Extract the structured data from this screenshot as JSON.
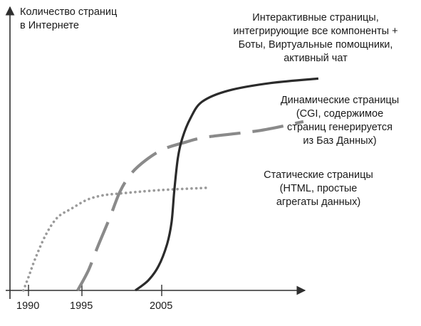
{
  "chart_data": {
    "type": "line",
    "ylabel_lines": [
      "Количество страниц",
      "в Интернете"
    ],
    "xlabel": "",
    "x_ticks": [
      1990,
      1995,
      2005
    ],
    "xlim": [
      1989,
      2017
    ],
    "ylim": [
      0,
      100
    ],
    "grid": false,
    "series": [
      {
        "name_lines": [
          "Статические страницы",
          "(HTML, простые",
          "агрегаты данных)"
        ],
        "style": "dotted",
        "color": "#9a9a9a",
        "points": [
          [
            1989.6,
            0
          ],
          [
            1990.0,
            6
          ],
          [
            1990.6,
            14
          ],
          [
            1991.6,
            25
          ],
          [
            1992.7,
            33
          ],
          [
            1994.0,
            37
          ],
          [
            1995.6,
            41
          ],
          [
            1997.5,
            43
          ],
          [
            2000.0,
            44
          ],
          [
            2005.0,
            45.5
          ],
          [
            2010.0,
            46.5
          ]
        ]
      },
      {
        "name_lines": [
          "Динамические страницы",
          "(CGI, содержимое",
          "страниц генерируется",
          "из Баз Данных)"
        ],
        "style": "dashed",
        "color": "#8a8a8a",
        "points": [
          [
            1994.6,
            0
          ],
          [
            1995.8,
            9
          ],
          [
            1997.0,
            20
          ],
          [
            1998.5,
            33
          ],
          [
            1999.8,
            45
          ],
          [
            2001.2,
            53
          ],
          [
            2003.0,
            59
          ],
          [
            2005.2,
            64
          ],
          [
            2007.5,
            67
          ],
          [
            2010.0,
            69.5
          ],
          [
            2012.5,
            72.5
          ],
          [
            2014.5,
            76.5
          ]
        ]
      },
      {
        "name_lines": [
          "Интерактивные страницы,",
          "интегрирующие все компоненты +",
          "Боты, Виртуальные помощники,",
          "активный чат"
        ],
        "style": "solid",
        "color": "#2b2b2b",
        "points": [
          [
            2001.7,
            0
          ],
          [
            2003.3,
            4.5
          ],
          [
            2004.6,
            11
          ],
          [
            2005.6,
            21
          ],
          [
            2006.1,
            31
          ],
          [
            2006.4,
            45
          ],
          [
            2006.8,
            60
          ],
          [
            2007.3,
            69
          ],
          [
            2008.2,
            78
          ],
          [
            2009.5,
            85.5
          ],
          [
            2011.0,
            90.5
          ],
          [
            2013.0,
            94
          ],
          [
            2015.2,
            96
          ]
        ]
      }
    ]
  }
}
